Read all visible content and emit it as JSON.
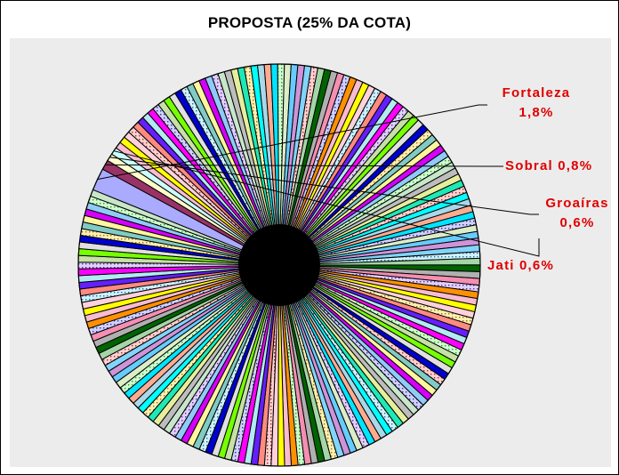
{
  "chart_data": {
    "type": "pie",
    "title": "PROPOSTA (25% DA COTA)",
    "highlighted_slices": [
      {
        "name": "Fortaleza",
        "value_label": "1,8%",
        "value": 1.8
      },
      {
        "name": "Sobral",
        "value_label": "0,8%",
        "value": 0.8
      },
      {
        "name": "Groaíras",
        "value_label": "0,6%",
        "value": 0.6
      },
      {
        "name": "Jati",
        "value_label": "0,6%",
        "value": 0.6
      }
    ],
    "other_slices_count": 180,
    "label_color": "#e00000",
    "grid": false,
    "legend": "none"
  },
  "labels": {
    "fortaleza_name": "Fortaleza",
    "fortaleza_value": "1,8%",
    "sobral": "Sobral 0,8%",
    "groairas_name": "Groaíras",
    "groairas_value": "0,6%",
    "jati": "Jati 0,6%"
  }
}
